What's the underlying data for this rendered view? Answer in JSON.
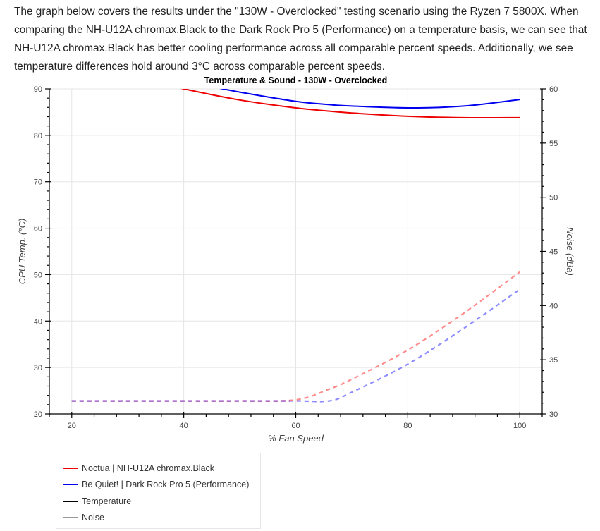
{
  "intro": {
    "text": "The graph below covers the results under the \"130W - Overclocked\" testing scenario using the Ryzen 7 5800X. When comparing the NH-U12A chromax.Black to the Dark Rock Pro 5 (Performance) on a temperature basis, we can see that NH-U12A chromax.Black has better cooling performance across all comparable percent speeds. Additionally, we see temperature differences hold around 3°C across comparable percent speeds."
  },
  "legend": {
    "items": [
      {
        "label": "Noctua | NH-U12A chromax.Black",
        "color": "#ee0000",
        "style": "solid"
      },
      {
        "label": "Be Quiet! | Dark Rock Pro 5 (Performance)",
        "color": "#0000ee",
        "style": "solid"
      },
      {
        "label": "Temperature",
        "color": "#000000",
        "style": "solid"
      },
      {
        "label": "Noise",
        "color": "#999999",
        "style": "dashed"
      }
    ]
  },
  "chart_data": {
    "type": "line",
    "title": "Temperature & Sound - 130W - Overclocked",
    "xlabel": "% Fan Speed",
    "ylabel": "CPU Temp. (°C)",
    "y2label": "Noise (dBa)",
    "xlim": [
      16,
      104
    ],
    "ylim": [
      20,
      90
    ],
    "y2lim": [
      30,
      60
    ],
    "xticks": [
      20,
      40,
      60,
      80,
      100
    ],
    "yticks": [
      20,
      30,
      40,
      50,
      60,
      70,
      80,
      90
    ],
    "y2ticks": [
      30,
      35,
      40,
      45,
      50,
      55,
      60
    ],
    "grid": true,
    "legend_position": "below-left",
    "x": [
      20,
      30,
      40,
      50,
      60,
      66,
      70,
      80,
      90,
      100
    ],
    "series": [
      {
        "name": "Noctua | NH-U12A chromax.Black - Temperature",
        "axis": "left",
        "color": "#ee0000",
        "dash": false,
        "values": [
          null,
          null,
          90.0,
          87.6,
          85.9,
          85.2,
          84.8,
          84.1,
          83.8,
          83.8
        ]
      },
      {
        "name": "Be Quiet! | Dark Rock Pro 5 (Performance) - Temperature",
        "axis": "left",
        "color": "#0000ee",
        "dash": false,
        "values": [
          null,
          null,
          null,
          89.3,
          87.3,
          86.6,
          86.3,
          85.9,
          86.3,
          87.7
        ]
      },
      {
        "name": "Noctua | NH-U12A chromax.Black - Noise",
        "axis": "right",
        "color": "#ff8080",
        "dash": true,
        "values": [
          31.2,
          31.2,
          31.2,
          31.2,
          31.3,
          32.3,
          33.2,
          35.9,
          39.3,
          43.1
        ]
      },
      {
        "name": "Be Quiet! | Dark Rock Pro 5 (Performance) - Noise",
        "axis": "right",
        "color": "#8080ff",
        "dash": true,
        "values": [
          31.2,
          31.2,
          31.2,
          31.2,
          31.2,
          31.2,
          32.0,
          34.6,
          37.9,
          41.5
        ]
      }
    ]
  }
}
